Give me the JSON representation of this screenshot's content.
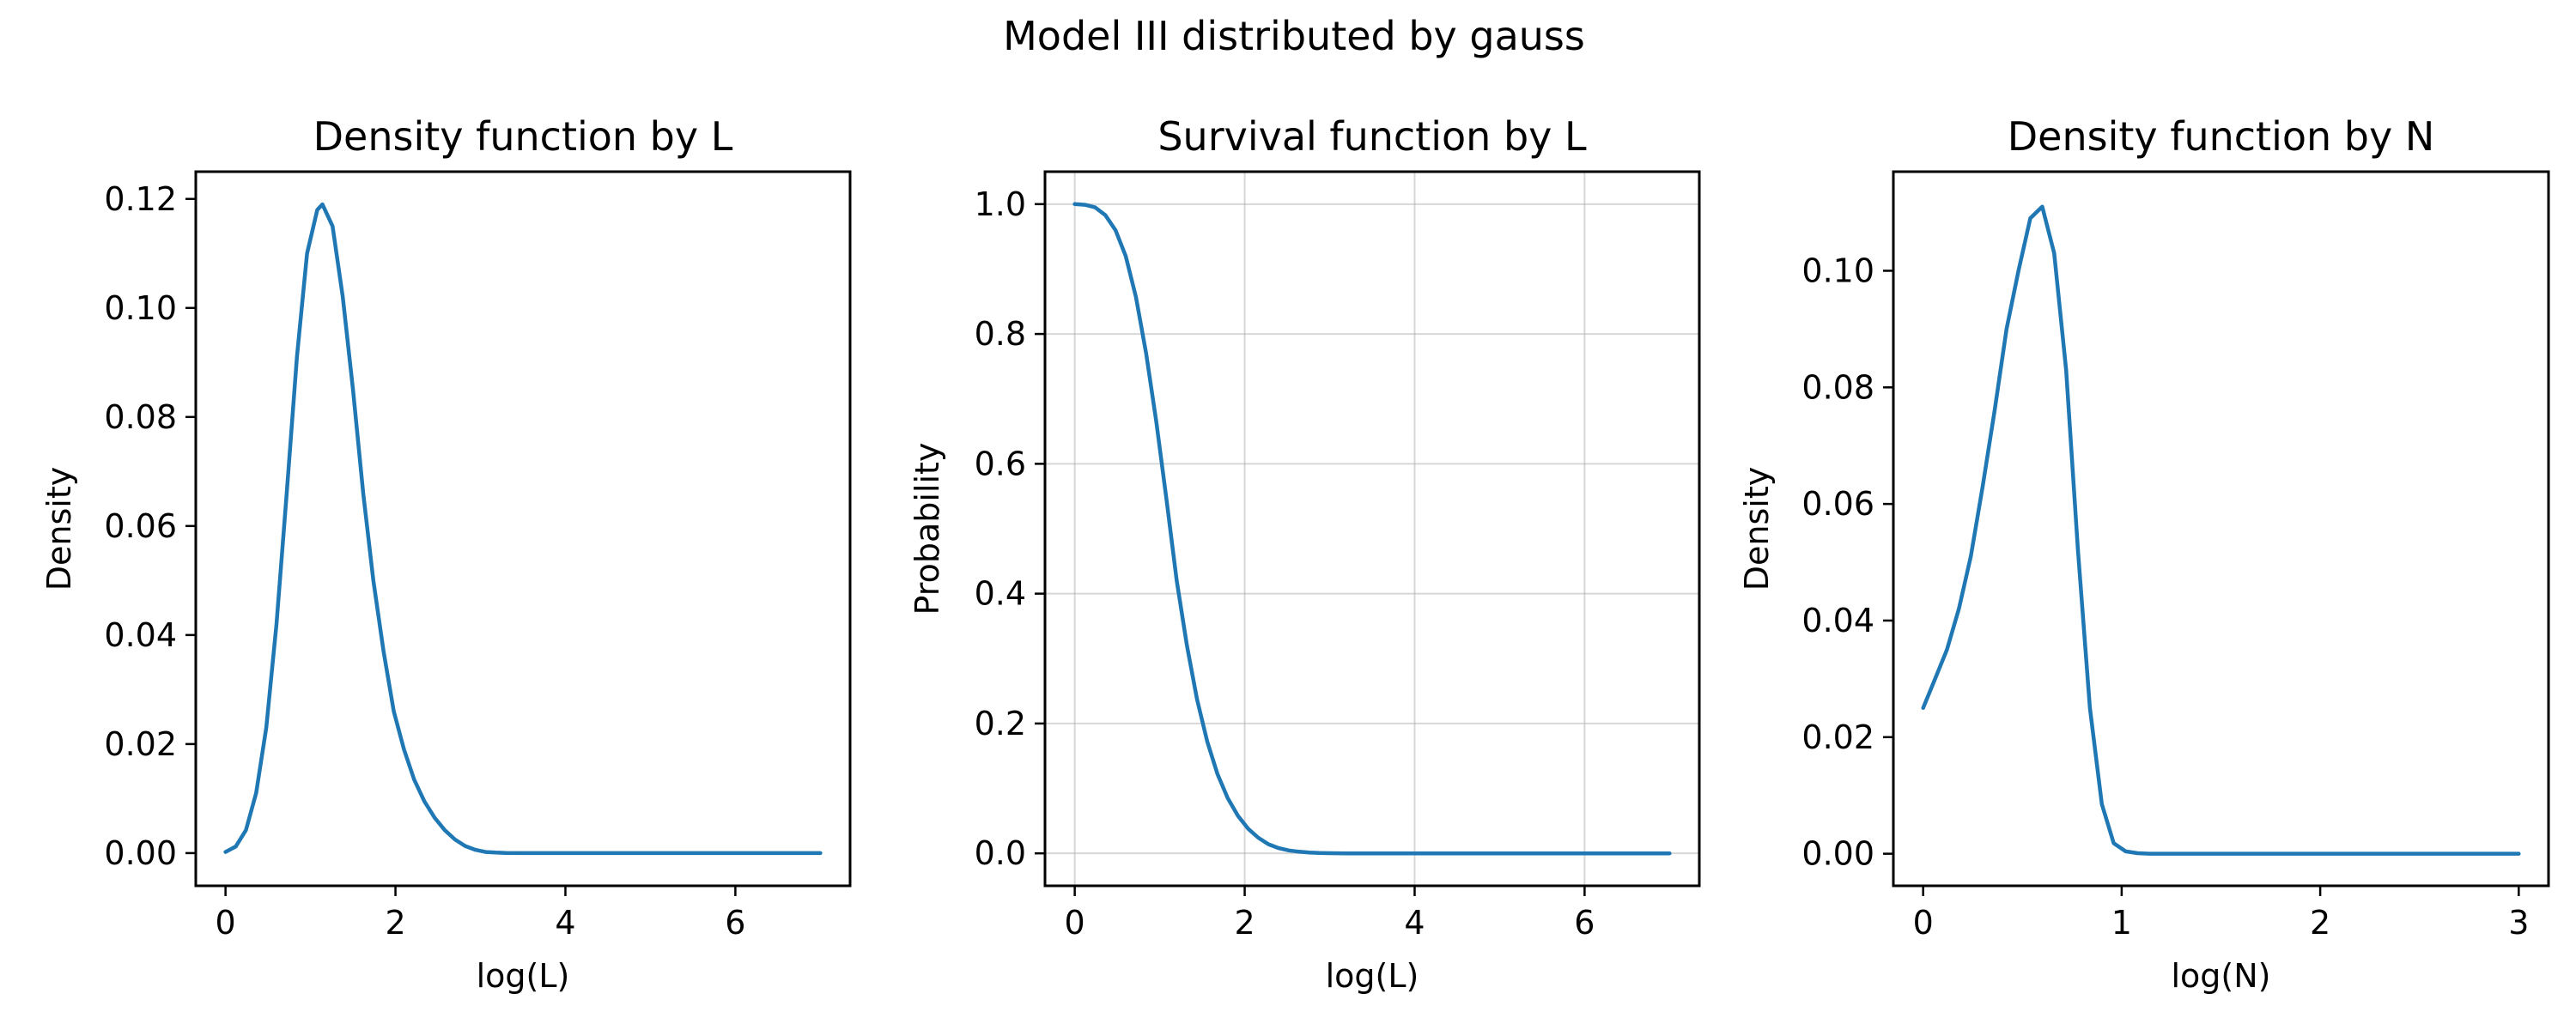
{
  "figure": {
    "suptitle": "Model III distributed by gauss"
  },
  "colors": {
    "series": "#1f77b4",
    "grid": "#b0b0b0"
  },
  "chart_data": [
    {
      "type": "line",
      "title": "Density function by L",
      "xlabel": "log(L)",
      "ylabel": "Density",
      "xlim": [
        -0.35,
        7.35
      ],
      "ylim": [
        -0.006,
        0.125
      ],
      "xticks": [
        0,
        2,
        4,
        6
      ],
      "yticks": [
        0.0,
        0.02,
        0.04,
        0.06,
        0.08,
        0.1,
        0.12
      ],
      "ytick_decimals": 2,
      "grid": false,
      "series": [
        {
          "x": [
            0,
            0.12,
            0.24,
            0.36,
            0.48,
            0.6,
            0.72,
            0.84,
            0.96,
            1.08,
            1.14,
            1.26,
            1.38,
            1.5,
            1.62,
            1.74,
            1.86,
            1.98,
            2.1,
            2.22,
            2.34,
            2.46,
            2.58,
            2.7,
            2.82,
            2.94,
            3.06,
            3.18,
            3.3,
            3.5,
            4,
            5,
            6,
            7
          ],
          "y": [
            0.0002,
            0.0012,
            0.0042,
            0.011,
            0.023,
            0.042,
            0.066,
            0.091,
            0.11,
            0.118,
            0.119,
            0.115,
            0.102,
            0.085,
            0.066,
            0.05,
            0.037,
            0.026,
            0.019,
            0.0135,
            0.0095,
            0.0065,
            0.0042,
            0.0025,
            0.0013,
            0.0006,
            0.0002,
            0.0001,
            3e-05,
            0.0,
            0.0,
            0.0,
            0.0,
            0.0
          ]
        }
      ]
    },
    {
      "type": "line",
      "title": "Survival function by L",
      "xlabel": "log(L)",
      "ylabel": "Probability",
      "xlim": [
        -0.35,
        7.35
      ],
      "ylim": [
        -0.05,
        1.05
      ],
      "xticks": [
        0,
        2,
        4,
        6
      ],
      "yticks": [
        0.0,
        0.2,
        0.4,
        0.6,
        0.8,
        1.0
      ],
      "ytick_decimals": 1,
      "grid": true,
      "series": [
        {
          "x": [
            0,
            0.12,
            0.24,
            0.36,
            0.48,
            0.6,
            0.72,
            0.84,
            0.96,
            1.08,
            1.2,
            1.32,
            1.44,
            1.56,
            1.68,
            1.8,
            1.92,
            2.04,
            2.16,
            2.28,
            2.4,
            2.52,
            2.64,
            2.76,
            2.88,
            3.0,
            3.2,
            3.5,
            4,
            5,
            6,
            7
          ],
          "y": [
            1.0,
            0.999,
            0.995,
            0.983,
            0.96,
            0.92,
            0.857,
            0.77,
            0.665,
            0.545,
            0.42,
            0.32,
            0.237,
            0.172,
            0.122,
            0.085,
            0.058,
            0.038,
            0.024,
            0.014,
            0.008,
            0.0045,
            0.0025,
            0.0012,
            0.0005,
            0.0002,
            0.0,
            0.0,
            0.0,
            0.0,
            0.0,
            0.0
          ]
        }
      ]
    },
    {
      "type": "line",
      "title": "Density function by N",
      "xlabel": "log(N)",
      "ylabel": "Density",
      "xlim": [
        -0.15,
        3.15
      ],
      "ylim": [
        -0.0055,
        0.117
      ],
      "xticks": [
        0,
        1,
        2,
        3
      ],
      "yticks": [
        0.0,
        0.02,
        0.04,
        0.06,
        0.08,
        0.1
      ],
      "ytick_decimals": 2,
      "grid": false,
      "series": [
        {
          "x": [
            0,
            0.06,
            0.12,
            0.18,
            0.24,
            0.3,
            0.36,
            0.42,
            0.48,
            0.54,
            0.6,
            0.66,
            0.72,
            0.78,
            0.84,
            0.9,
            0.96,
            1.02,
            1.08,
            1.14,
            1.5,
            2,
            2.5,
            3
          ],
          "y": [
            0.025,
            0.03,
            0.035,
            0.042,
            0.051,
            0.063,
            0.076,
            0.09,
            0.1,
            0.109,
            0.111,
            0.103,
            0.083,
            0.052,
            0.025,
            0.0085,
            0.0018,
            0.0004,
            0.0001,
            0.0,
            0.0,
            0.0,
            0.0,
            0.0
          ]
        }
      ]
    }
  ]
}
